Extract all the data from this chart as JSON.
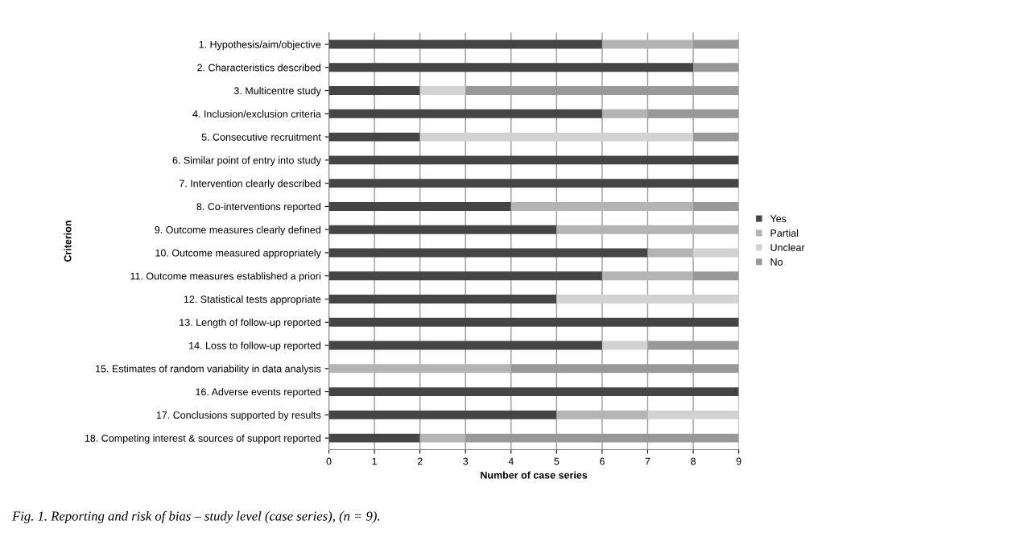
{
  "chart_data": {
    "type": "bar",
    "orientation": "horizontal",
    "stacked": true,
    "xlabel": "Number of case series",
    "ylabel": "Criterion",
    "categories": [
      "1. Hypothesis/aim/objective",
      "2. Characteristics described",
      "3. Multicentre study",
      "4. Inclusion/exclusion criteria",
      "5. Consecutive recruitment",
      "6. Similar point of entry into study",
      "7. Intervention clearly described",
      "8. Co-interventions reported",
      "9. Outcome measures clearly defined",
      "10. Outcome measured appropriately",
      "11. Outcome measures established a priori",
      "12. Statistical tests appropriate",
      "13. Length of follow-up reported",
      "14. Loss to follow-up reported",
      "15. Estimates of random variability in data analysis",
      "16. Adverse events reported",
      "17. Conclusions supported by results",
      "18. Competing interest & sources of support reported"
    ],
    "series": [
      {
        "name": "Yes",
        "color": "#454545",
        "values": [
          6,
          8,
          2,
          6,
          2,
          9,
          9,
          4,
          5,
          7,
          6,
          5,
          9,
          6,
          0,
          9,
          5,
          2
        ]
      },
      {
        "name": "Partial",
        "color": "#b4b4b4",
        "values": [
          2,
          0,
          0,
          1,
          0,
          0,
          0,
          4,
          4,
          1,
          2,
          0,
          0,
          0,
          4,
          0,
          2,
          1
        ]
      },
      {
        "name": "Unclear",
        "color": "#d2d2d2",
        "values": [
          0,
          0,
          1,
          0,
          6,
          0,
          0,
          0,
          0,
          1,
          0,
          4,
          0,
          1,
          0,
          0,
          2,
          0
        ]
      },
      {
        "name": "No",
        "color": "#989898",
        "values": [
          1,
          1,
          6,
          2,
          1,
          0,
          0,
          1,
          0,
          0,
          1,
          0,
          0,
          2,
          5,
          0,
          0,
          6
        ]
      }
    ],
    "xlim": [
      0,
      9
    ],
    "xticks": [
      0,
      1,
      2,
      3,
      4,
      5,
      6,
      7,
      8,
      9
    ],
    "grid": "x",
    "legend": "right",
    "annotations": [
      "Fig. 1. Reporting and risk of bias – study level (case series), (n = 9)."
    ]
  }
}
